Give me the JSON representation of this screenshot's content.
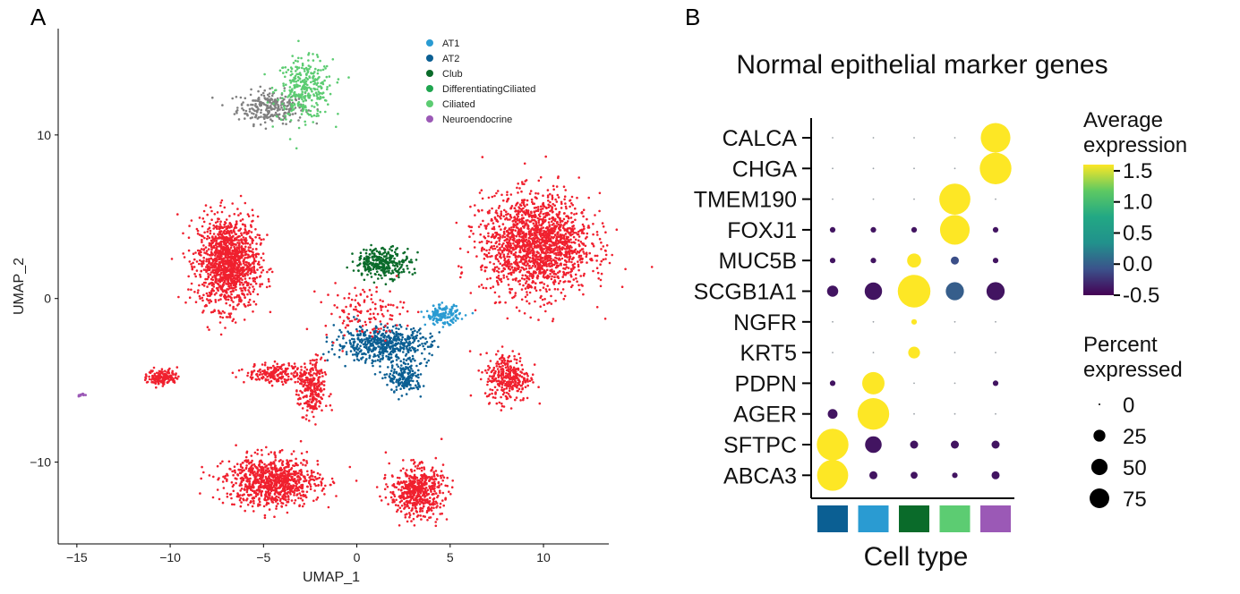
{
  "panels": {
    "a_letter": "A",
    "b_letter": "B"
  },
  "umap": {
    "chart_data": {
      "type": "scatter",
      "xlabel": "UMAP_1",
      "ylabel": "UMAP_2",
      "xlim": [
        -16,
        13.5
      ],
      "ylim": [
        -15,
        16.5
      ],
      "xticks": [
        -15,
        -10,
        -5,
        0,
        5,
        10
      ],
      "yticks": [
        -10,
        0,
        10
      ],
      "legend_position": "top-right",
      "legend": [
        {
          "name": "AT1",
          "color": "#2a9bd2"
        },
        {
          "name": "AT2",
          "color": "#0b5f93"
        },
        {
          "name": "Club",
          "color": "#0a6b2a"
        },
        {
          "name": "DifferentiatingCiliated",
          "color": "#1fa54f"
        },
        {
          "name": "Ciliated",
          "color": "#5ccc72"
        },
        {
          "name": "Neuroendocrine",
          "color": "#9b59b6"
        }
      ],
      "clusters": [
        {
          "color": "#808080",
          "cx": -4.6,
          "cy": 11.7,
          "rx": 1.8,
          "ry": 1.0,
          "n": 260
        },
        {
          "color": "#5ccc72",
          "cx": -2.8,
          "cy": 12.8,
          "rx": 1.5,
          "ry": 1.8,
          "n": 320
        },
        {
          "color": "#f0202e",
          "cx": -6.9,
          "cy": 2.2,
          "rx": 1.6,
          "ry": 2.8,
          "n": 1300
        },
        {
          "color": "#f0202e",
          "cx": 9.6,
          "cy": 3.3,
          "rx": 2.9,
          "ry": 3.0,
          "n": 1700
        },
        {
          "color": "#0a6b2a",
          "cx": 1.4,
          "cy": 2.2,
          "rx": 1.5,
          "ry": 0.9,
          "n": 300
        },
        {
          "color": "#0b5f93",
          "cx": 1.4,
          "cy": -2.8,
          "rx": 2.5,
          "ry": 1.1,
          "n": 550
        },
        {
          "color": "#0b5f93",
          "cx": 2.6,
          "cy": -4.9,
          "rx": 0.9,
          "ry": 0.9,
          "n": 180
        },
        {
          "color": "#2a9bd2",
          "cx": 4.6,
          "cy": -1.0,
          "rx": 0.9,
          "ry": 0.6,
          "n": 150
        },
        {
          "color": "#f0202e",
          "cx": -4.5,
          "cy": -11.2,
          "rx": 2.5,
          "ry": 1.5,
          "n": 900
        },
        {
          "color": "#f0202e",
          "cx": 3.2,
          "cy": -11.8,
          "rx": 1.4,
          "ry": 1.5,
          "n": 550
        },
        {
          "color": "#f0202e",
          "cx": -10.4,
          "cy": -4.8,
          "rx": 0.8,
          "ry": 0.5,
          "n": 150
        },
        {
          "color": "#f0202e",
          "cx": -4.3,
          "cy": -4.6,
          "rx": 1.6,
          "ry": 0.6,
          "n": 200
        },
        {
          "color": "#f0202e",
          "cx": -2.4,
          "cy": -5.6,
          "rx": 0.7,
          "ry": 1.8,
          "n": 260
        },
        {
          "color": "#f0202e",
          "cx": 8.1,
          "cy": -4.8,
          "rx": 1.2,
          "ry": 1.5,
          "n": 320
        },
        {
          "color": "#f0202e",
          "cx": 0.4,
          "cy": -0.8,
          "rx": 2.2,
          "ry": 1.6,
          "n": 130
        },
        {
          "color": "#9b59b6",
          "cx": -14.7,
          "cy": -5.9,
          "rx": 0.2,
          "ry": 0.1,
          "n": 12
        }
      ]
    }
  },
  "dotplot": {
    "chart_data": {
      "type": "dotplot",
      "title": "Normal epithelial marker genes",
      "xlabel": "Cell type",
      "genes": [
        "CALCA",
        "CHGA",
        "TMEM190",
        "FOXJ1",
        "MUC5B",
        "SCGB1A1",
        "NGFR",
        "KRT5",
        "PDPN",
        "AGER",
        "SFTPC",
        "ABCA3"
      ],
      "celltype_colors": [
        "#0b5f93",
        "#2a9bd2",
        "#0a6b2a",
        "#5ccc72",
        "#9b59b6"
      ],
      "color_scale": {
        "title": [
          "Average",
          "expression"
        ],
        "min": -0.5,
        "max": 1.6,
        "ticks": [
          "1.5",
          "1.0",
          "0.5",
          "0.0",
          "-0.5"
        ]
      },
      "size_scale": {
        "title": [
          "Percent",
          "expressed"
        ],
        "ticks": [
          "0",
          "25",
          "50",
          "75"
        ]
      },
      "percent_expressed": [
        [
          0,
          0,
          0,
          0,
          65
        ],
        [
          0,
          0,
          0,
          0,
          75
        ],
        [
          0,
          0,
          0,
          72,
          0
        ],
        [
          1,
          1,
          1,
          65,
          1
        ],
        [
          1,
          1,
          12,
          3,
          1
        ],
        [
          7,
          20,
          80,
          22,
          22
        ],
        [
          0,
          0,
          1,
          0,
          0
        ],
        [
          0,
          0,
          8,
          0,
          0
        ],
        [
          1,
          35,
          0,
          0,
          1
        ],
        [
          5,
          75,
          0,
          0,
          0
        ],
        [
          75,
          18,
          3,
          3,
          3
        ],
        [
          72,
          3,
          2,
          1,
          3
        ]
      ],
      "avg_expression": [
        [
          -0.5,
          -0.5,
          -0.5,
          -0.5,
          1.6
        ],
        [
          -0.5,
          -0.5,
          -0.5,
          -0.5,
          1.6
        ],
        [
          -0.5,
          -0.5,
          -0.5,
          1.6,
          -0.5
        ],
        [
          -0.4,
          -0.4,
          -0.4,
          1.6,
          -0.4
        ],
        [
          -0.4,
          -0.4,
          1.6,
          -0.1,
          -0.4
        ],
        [
          -0.4,
          -0.4,
          1.6,
          0.0,
          -0.4
        ],
        [
          -0.5,
          -0.5,
          1.6,
          -0.5,
          -0.5
        ],
        [
          -0.5,
          -0.5,
          1.6,
          -0.5,
          -0.5
        ],
        [
          -0.4,
          1.6,
          -0.5,
          -0.5,
          -0.4
        ],
        [
          -0.4,
          1.6,
          -0.5,
          -0.5,
          -0.5
        ],
        [
          1.6,
          -0.4,
          -0.4,
          -0.4,
          -0.4
        ],
        [
          1.6,
          -0.4,
          -0.4,
          -0.4,
          -0.4
        ]
      ]
    }
  }
}
